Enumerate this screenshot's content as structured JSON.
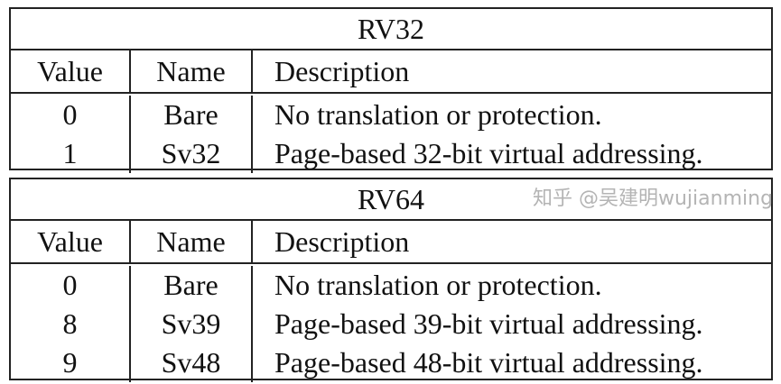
{
  "tables": [
    {
      "title": "RV32",
      "headers": [
        "Value",
        "Name",
        "Description"
      ],
      "rows": [
        [
          "0",
          "Bare",
          "No translation or protection."
        ],
        [
          "1",
          "Sv32",
          "Page-based 32-bit virtual addressing."
        ]
      ]
    },
    {
      "title": "RV64",
      "headers": [
        "Value",
        "Name",
        "Description"
      ],
      "rows": [
        [
          "0",
          "Bare",
          "No translation or protection."
        ],
        [
          "8",
          "Sv39",
          "Page-based 39-bit virtual addressing."
        ],
        [
          "9",
          "Sv48",
          "Page-based 48-bit virtual addressing."
        ]
      ]
    }
  ],
  "watermark": "知乎 @吴建明wujianming"
}
